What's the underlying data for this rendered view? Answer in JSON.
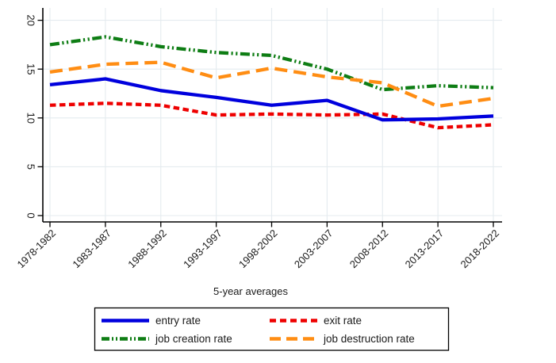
{
  "chart_data": {
    "type": "line",
    "title": "",
    "xlabel": "5-year averages",
    "categories": [
      "1978-1982",
      "1983-1987",
      "1988-1992",
      "1993-1997",
      "1998-2002",
      "2003-2007",
      "2008-2012",
      "2013-2017",
      "2018-2022"
    ],
    "ylim": [
      0,
      20
    ],
    "y_ticks": [
      0,
      5,
      10,
      15,
      20
    ],
    "grid": true,
    "legend_position": "bottom-box",
    "x_tick_rotation_deg": 45,
    "y_tick_rotation_deg": 90,
    "series": [
      {
        "name": "entry rate",
        "color": "#0000dd",
        "dash": "solid",
        "values": [
          13.4,
          14.0,
          12.8,
          12.1,
          11.3,
          11.8,
          9.8,
          9.9,
          10.2
        ]
      },
      {
        "name": "exit rate",
        "color": "#ee0000",
        "dash": "dash",
        "values": [
          11.3,
          11.5,
          11.3,
          10.3,
          10.4,
          10.3,
          10.4,
          9.0,
          9.3
        ]
      },
      {
        "name": "job creation rate",
        "color": "#0e7d14",
        "dash": "dash-dot-dot",
        "values": [
          17.5,
          18.3,
          17.3,
          16.7,
          16.4,
          15.0,
          12.9,
          13.3,
          13.1
        ]
      },
      {
        "name": "job destruction rate",
        "color": "#ff8d13",
        "dash": "longdash",
        "values": [
          14.7,
          15.5,
          15.7,
          14.1,
          15.1,
          14.2,
          13.6,
          11.2,
          12.0
        ]
      }
    ],
    "draw_order": [
      2,
      3,
      1,
      0
    ],
    "colors": {
      "gridline": "#e4ebef",
      "axis": "#000000",
      "text": "#1a1a1a",
      "legend_border": "#000000",
      "background": "#ffffff"
    }
  }
}
